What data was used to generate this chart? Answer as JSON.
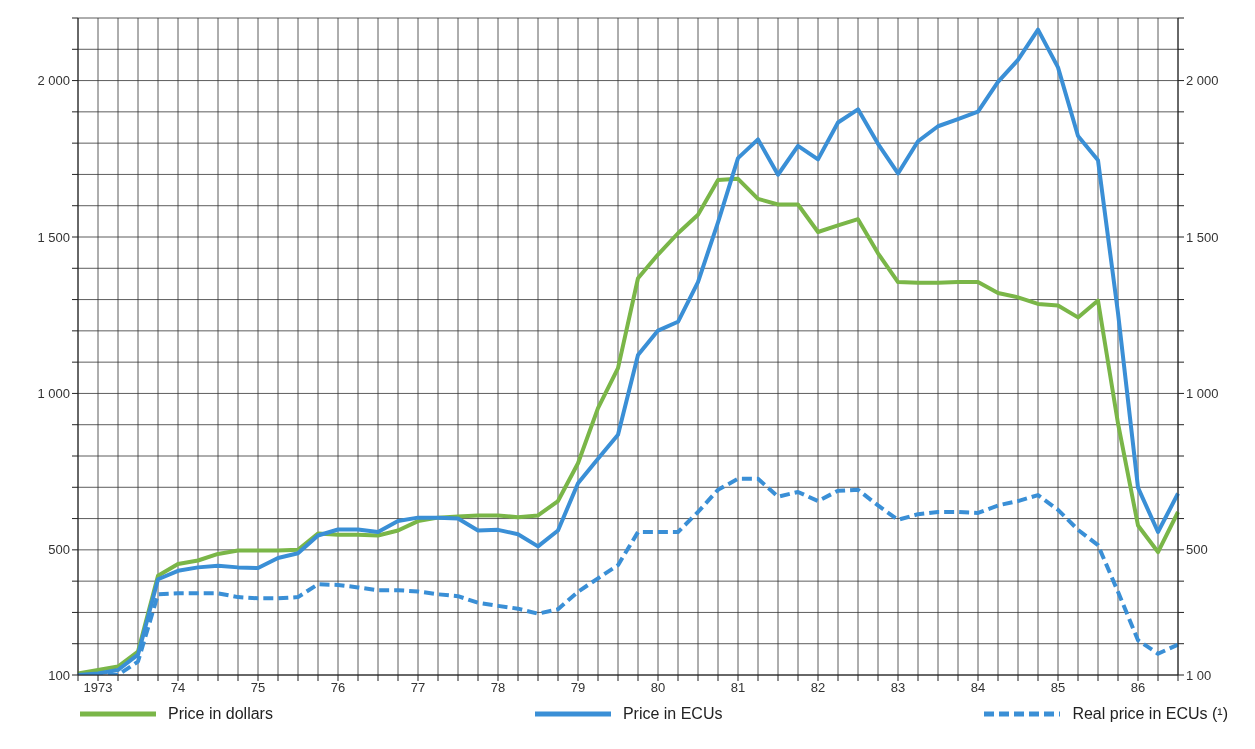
{
  "chart_data": {
    "type": "line",
    "categories": [
      null,
      "1973",
      null,
      null,
      null,
      "74",
      null,
      null,
      null,
      "75",
      null,
      null,
      null,
      "76",
      null,
      null,
      null,
      "77",
      null,
      null,
      null,
      "78",
      null,
      null,
      null,
      "79",
      null,
      null,
      null,
      "80",
      null,
      null,
      null,
      "81",
      null,
      null,
      null,
      "82",
      null,
      null,
      null,
      "83",
      null,
      null,
      null,
      "84",
      null,
      null,
      null,
      "85",
      null,
      null,
      null,
      "86",
      null,
      null
    ],
    "ylim": [
      100,
      2200
    ],
    "yticks": [
      {
        "value": 100,
        "label": "100"
      },
      {
        "value": 200,
        "label": null
      },
      {
        "value": 300,
        "label": null
      },
      {
        "value": 400,
        "label": null
      },
      {
        "value": 500,
        "label": "500"
      },
      {
        "value": 600,
        "label": null
      },
      {
        "value": 700,
        "label": null
      },
      {
        "value": 800,
        "label": null
      },
      {
        "value": 900,
        "label": null
      },
      {
        "value": 1000,
        "label": "1 000"
      },
      {
        "value": 1100,
        "label": null
      },
      {
        "value": 1200,
        "label": null
      },
      {
        "value": 1300,
        "label": null
      },
      {
        "value": 1400,
        "label": null
      },
      {
        "value": 1500,
        "label": "1 500"
      },
      {
        "value": 1600,
        "label": null
      },
      {
        "value": 1700,
        "label": null
      },
      {
        "value": 1800,
        "label": null
      },
      {
        "value": 1900,
        "label": null
      },
      {
        "value": 2000,
        "label": "2 000"
      },
      {
        "value": 2100,
        "label": null
      },
      {
        "value": 2200,
        "label": null
      }
    ],
    "y2lim": [
      100,
      2200
    ],
    "y2ticks": [
      {
        "value": 100,
        "label": "1 00"
      },
      {
        "value": 200,
        "label": null
      },
      {
        "value": 300,
        "label": null
      },
      {
        "value": 400,
        "label": null
      },
      {
        "value": 500,
        "label": "500"
      },
      {
        "value": 600,
        "label": null
      },
      {
        "value": 700,
        "label": null
      },
      {
        "value": 800,
        "label": null
      },
      {
        "value": 900,
        "label": null
      },
      {
        "value": 1000,
        "label": "1 000"
      },
      {
        "value": 1100,
        "label": null
      },
      {
        "value": 1200,
        "label": null
      },
      {
        "value": 1300,
        "label": null
      },
      {
        "value": 1400,
        "label": null
      },
      {
        "value": 1500,
        "label": "1 500"
      },
      {
        "value": 1600,
        "label": null
      },
      {
        "value": 1700,
        "label": null
      },
      {
        "value": 1800,
        "label": null
      },
      {
        "value": 1900,
        "label": null
      },
      {
        "value": 2000,
        "label": "2 000"
      },
      {
        "value": 2100,
        "label": null
      },
      {
        "value": 2200,
        "label": null
      }
    ],
    "grid": true,
    "legend": "bottom",
    "marker": "none",
    "series": [
      {
        "name": "Price in dollars",
        "color": "#7ab648",
        "line_style": "solid",
        "values": [
          105,
          116,
          127,
          175,
          417,
          455,
          466,
          487,
          498,
          498,
          498,
          500,
          552,
          548,
          548,
          546,
          562,
          592,
          603,
          607,
          610,
          610,
          604,
          610,
          656,
          777,
          953,
          1081,
          1368,
          1444,
          1512,
          1571,
          1682,
          1686,
          1622,
          1604,
          1604,
          1516,
          1537,
          1557,
          1448,
          1356,
          1354,
          1354,
          1356,
          1356,
          1321,
          1307,
          1286,
          1281,
          1243,
          1297,
          904,
          578,
          493,
          621
        ]
      },
      {
        "name": "Price in ECUs",
        "color": "#3a8fd6",
        "line_style": "solid",
        "values": [
          100,
          105,
          116,
          165,
          406,
          433,
          444,
          449,
          444,
          442,
          474,
          489,
          546,
          565,
          565,
          557,
          592,
          603,
          603,
          600,
          562,
          564,
          550,
          511,
          562,
          713,
          791,
          868,
          1123,
          1201,
          1229,
          1356,
          1547,
          1752,
          1812,
          1699,
          1791,
          1748,
          1866,
          1908,
          1798,
          1703,
          1806,
          1854,
          1877,
          1901,
          1996,
          2066,
          2163,
          2042,
          1823,
          1745,
          1257,
          699,
          557,
          680
        ]
      },
      {
        "name": "Real price in ECUs (¹)",
        "color": "#3a8fd6",
        "line_style": "dashed",
        "values": [
          100,
          100,
          100,
          143,
          358,
          361,
          361,
          361,
          349,
          345,
          345,
          349,
          390,
          388,
          380,
          371,
          371,
          367,
          358,
          352,
          331,
          321,
          312,
          296,
          310,
          366,
          409,
          451,
          557,
          557,
          557,
          621,
          692,
          727,
          727,
          670,
          685,
          656,
          689,
          692,
          642,
          596,
          614,
          621,
          621,
          618,
          642,
          656,
          675,
          628,
          564,
          515,
          366,
          211,
          168,
          197
        ]
      }
    ]
  }
}
